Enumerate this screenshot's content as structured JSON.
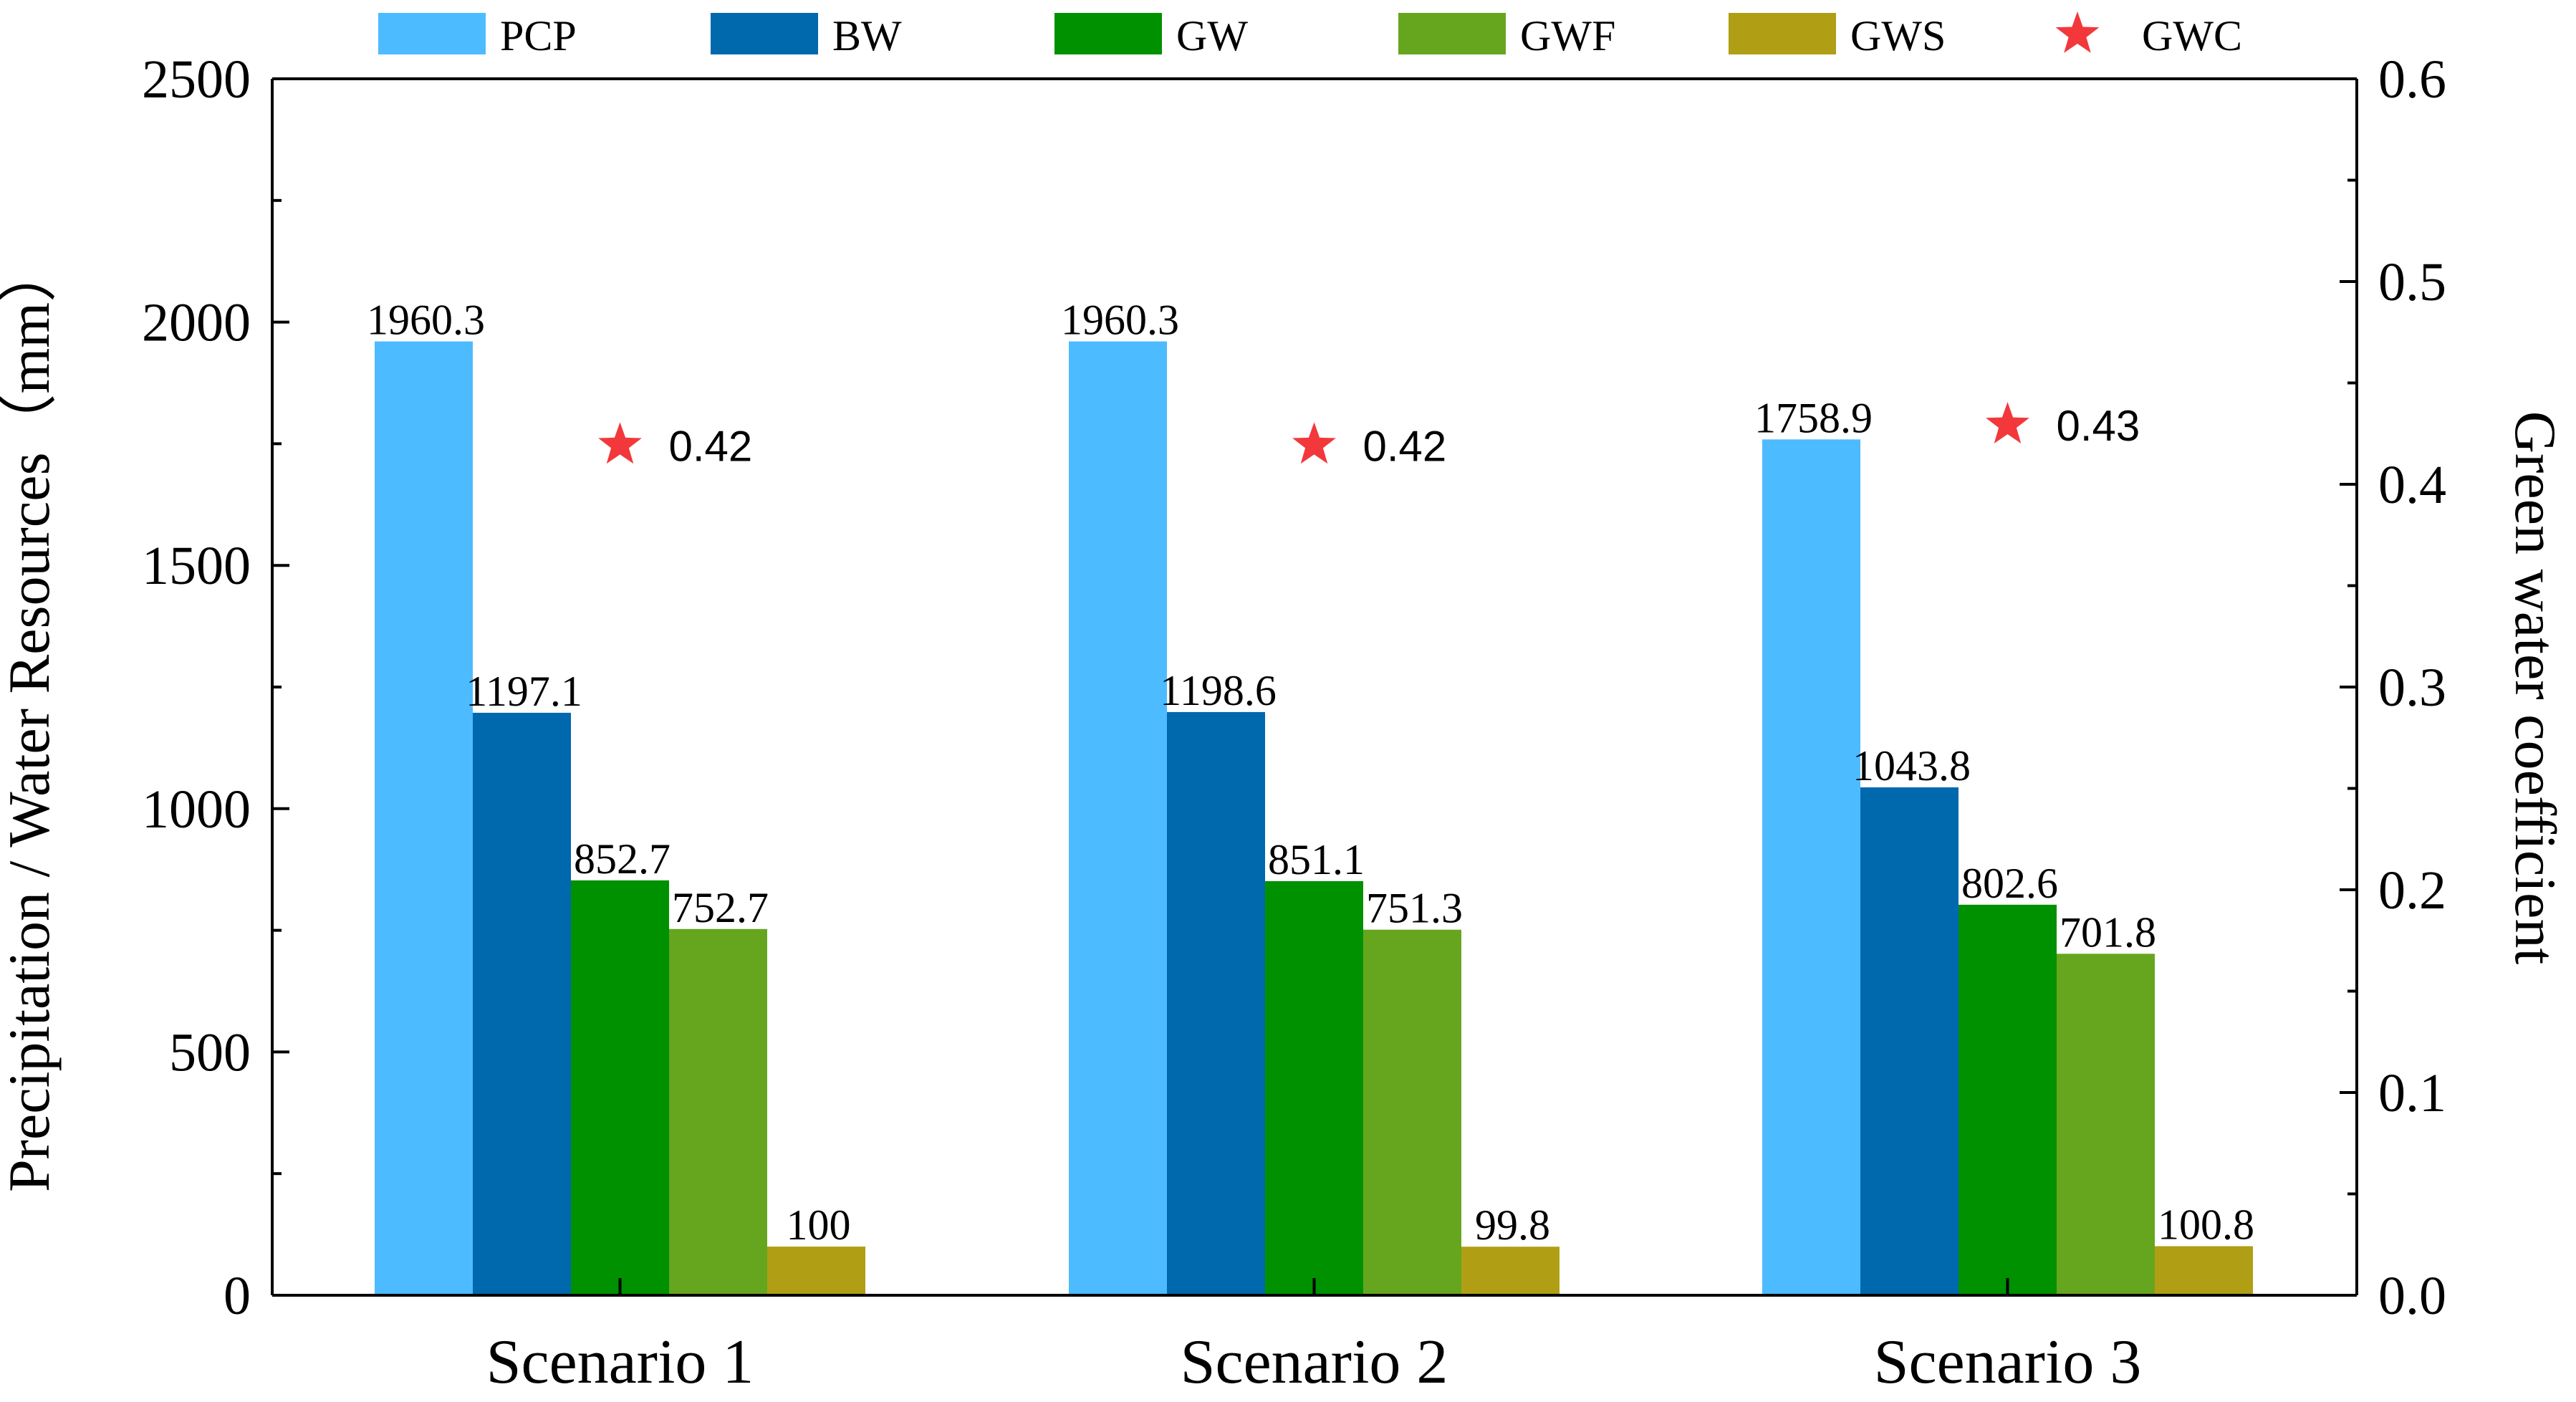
{
  "chart_data": {
    "type": "bar",
    "categories": [
      "Scenario 1",
      "Scenario 2",
      "Scenario 3"
    ],
    "series": [
      {
        "key": "PCP",
        "name": "PCP",
        "color": "#4DBBFF",
        "values": [
          1960.3,
          1960.3,
          1758.9
        ],
        "labels": [
          "1960.3",
          "1960.3",
          "1758.9"
        ]
      },
      {
        "key": "BW",
        "name": "BW",
        "color": "#0068AD",
        "values": [
          1197.1,
          1198.6,
          1043.8
        ],
        "labels": [
          "1197.1",
          "1198.6",
          "1043.8"
        ]
      },
      {
        "key": "GW",
        "name": "GW",
        "color": "#009100",
        "values": [
          852.7,
          851.1,
          802.6
        ],
        "labels": [
          "852.7",
          "851.1",
          "802.6"
        ]
      },
      {
        "key": "GWF",
        "name": "GWF",
        "color": "#66A61E",
        "values": [
          752.7,
          751.3,
          701.8
        ],
        "labels": [
          "752.7",
          "751.3",
          "701.8"
        ]
      },
      {
        "key": "GWS",
        "name": "GWS",
        "color": "#B09E14",
        "values": [
          100,
          99.8,
          100.8
        ],
        "labels": [
          "100",
          "99.8",
          "100.8"
        ]
      }
    ],
    "secondary_series": {
      "key": "GWC",
      "name": "GWC",
      "type": "scatter",
      "marker": "star",
      "color": "#F2383B",
      "values": [
        0.42,
        0.42,
        0.43
      ],
      "labels": [
        "0.42",
        "0.42",
        "0.43"
      ]
    },
    "ylabel": "Precipitation / Water Resources（mm）",
    "y2label": "Green water coefficient",
    "xlabel": "",
    "ylim": [
      0,
      2500
    ],
    "y2lim": [
      0,
      0.6
    ],
    "yticks": [
      "0",
      "500",
      "1000",
      "1500",
      "2000",
      "2500"
    ],
    "y2ticks": [
      "0.0",
      "0.1",
      "0.2",
      "0.3",
      "0.4",
      "0.5",
      "0.6"
    ],
    "legend_position": "top",
    "grid": false
  }
}
